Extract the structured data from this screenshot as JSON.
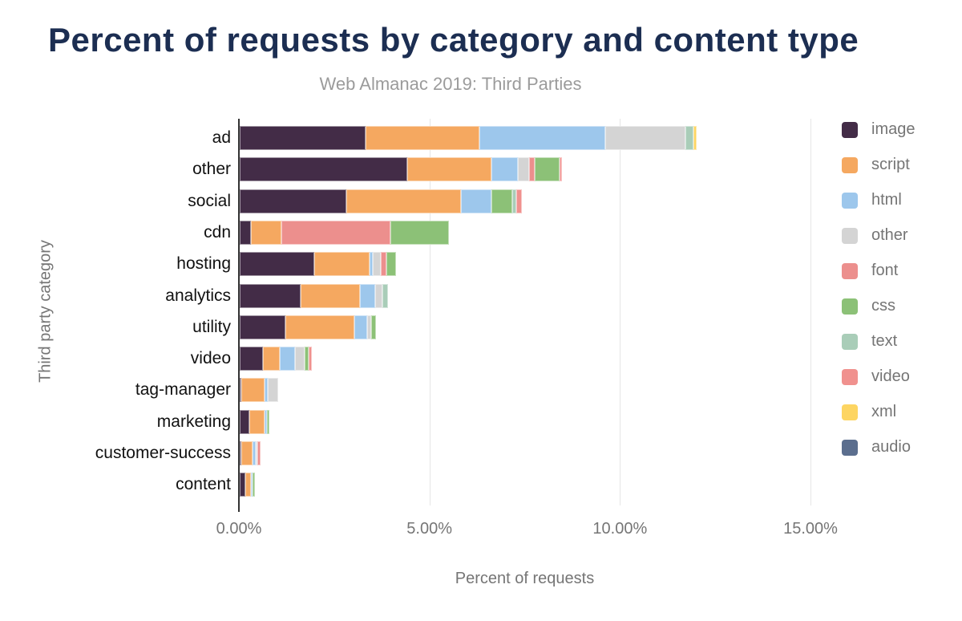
{
  "title": "Percent of requests by category and content type",
  "subtitle": "Web Almanac 2019: Third Parties",
  "axis": {
    "x_label": "Percent of requests",
    "y_label": "Third party category",
    "x_ticks": [
      "0.00%",
      "5.00%",
      "10.00%",
      "15.00%"
    ],
    "x_tick_values": [
      0,
      5,
      10,
      15
    ]
  },
  "colors": {
    "title": "#1c2e52",
    "subtitle": "#9b9b9b",
    "axis_text": "#757575",
    "category_text": "#111111",
    "gridline": "#e6e6e6",
    "axis_line": "#333333"
  },
  "chart_data": {
    "type": "bar",
    "stacked": true,
    "orientation": "horizontal",
    "title": "Percent of requests by category and content type",
    "subtitle": "Web Almanac 2019: Third Parties",
    "xlabel": "Percent of requests",
    "ylabel": "Third party category",
    "xlim": [
      0,
      15
    ],
    "grid": "vertical",
    "legend_position": "right",
    "categories": [
      "ad",
      "other",
      "social",
      "cdn",
      "hosting",
      "analytics",
      "utility",
      "video",
      "tag-manager",
      "marketing",
      "customer-success",
      "content"
    ],
    "series": [
      {
        "name": "image",
        "color": "#432c47",
        "values": [
          3.3,
          4.4,
          2.8,
          0.3,
          1.95,
          1.6,
          1.2,
          0.6,
          0.05,
          0.25,
          0.03,
          0.15
        ]
      },
      {
        "name": "script",
        "color": "#f5a860",
        "values": [
          3.0,
          2.2,
          3.0,
          0.8,
          1.45,
          1.55,
          1.8,
          0.45,
          0.6,
          0.4,
          0.3,
          0.15
        ]
      },
      {
        "name": "html",
        "color": "#9dc7ec",
        "values": [
          3.3,
          0.7,
          0.8,
          0,
          0.1,
          0.4,
          0.35,
          0.4,
          0.08,
          0.07,
          0.07,
          0.03
        ]
      },
      {
        "name": "other",
        "color": "#d4d4d4",
        "values": [
          2.1,
          0.3,
          0,
          0,
          0.2,
          0.2,
          0.1,
          0.25,
          0.27,
          0,
          0.06,
          0
        ]
      },
      {
        "name": "font",
        "color": "#ec8f8d",
        "values": [
          0,
          0.15,
          0,
          2.85,
          0.15,
          0,
          0,
          0,
          0,
          0,
          0.08,
          0
        ]
      },
      {
        "name": "css",
        "color": "#8cc177",
        "values": [
          0,
          0.65,
          0.55,
          1.55,
          0.25,
          0,
          0.12,
          0.1,
          0,
          0.06,
          0,
          0.05
        ]
      },
      {
        "name": "text",
        "color": "#a9cdb8",
        "values": [
          0.2,
          0,
          0.1,
          0,
          0,
          0.15,
          0,
          0,
          0,
          0,
          0,
          0
        ]
      },
      {
        "name": "video",
        "color": "#f0918e",
        "values": [
          0,
          0.05,
          0.15,
          0,
          0,
          0,
          0,
          0.1,
          0,
          0,
          0,
          0
        ]
      },
      {
        "name": "xml",
        "color": "#fdd562",
        "values": [
          0.1,
          0,
          0,
          0,
          0,
          0,
          0,
          0,
          0,
          0,
          0,
          0
        ]
      },
      {
        "name": "audio",
        "color": "#5b6e8e",
        "values": [
          0,
          0,
          0,
          0,
          0,
          0,
          0,
          0,
          0,
          0,
          0,
          0
        ]
      }
    ],
    "totals": [
      12.0,
      8.45,
      7.4,
      5.5,
      4.1,
      3.9,
      3.57,
      1.9,
      1.0,
      0.78,
      0.54,
      0.38
    ]
  }
}
